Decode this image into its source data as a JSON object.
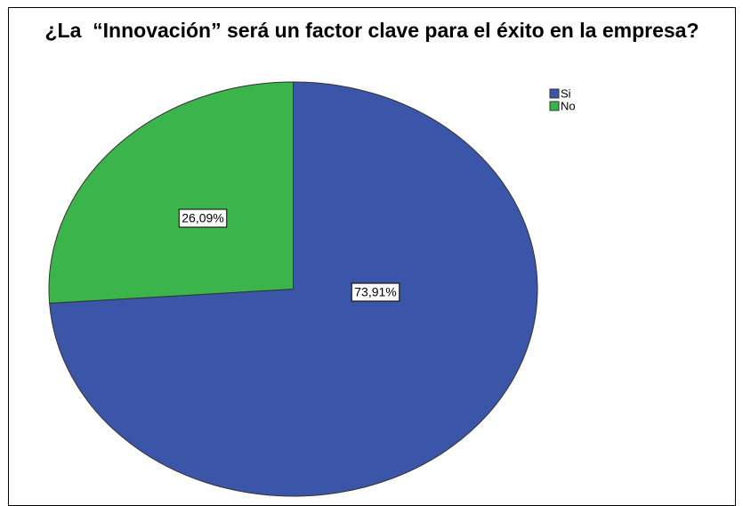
{
  "chart_data": {
    "type": "pie",
    "title": "¿La  “Innovación” será un factor clave para el éxito en la empresa?",
    "categories": [
      "Si",
      "No"
    ],
    "values": [
      73.91,
      26.09
    ],
    "value_labels": [
      "73,91%",
      "26,09%"
    ],
    "colors": [
      "#3b55a8",
      "#3bb44b"
    ],
    "legend": "top-right"
  }
}
